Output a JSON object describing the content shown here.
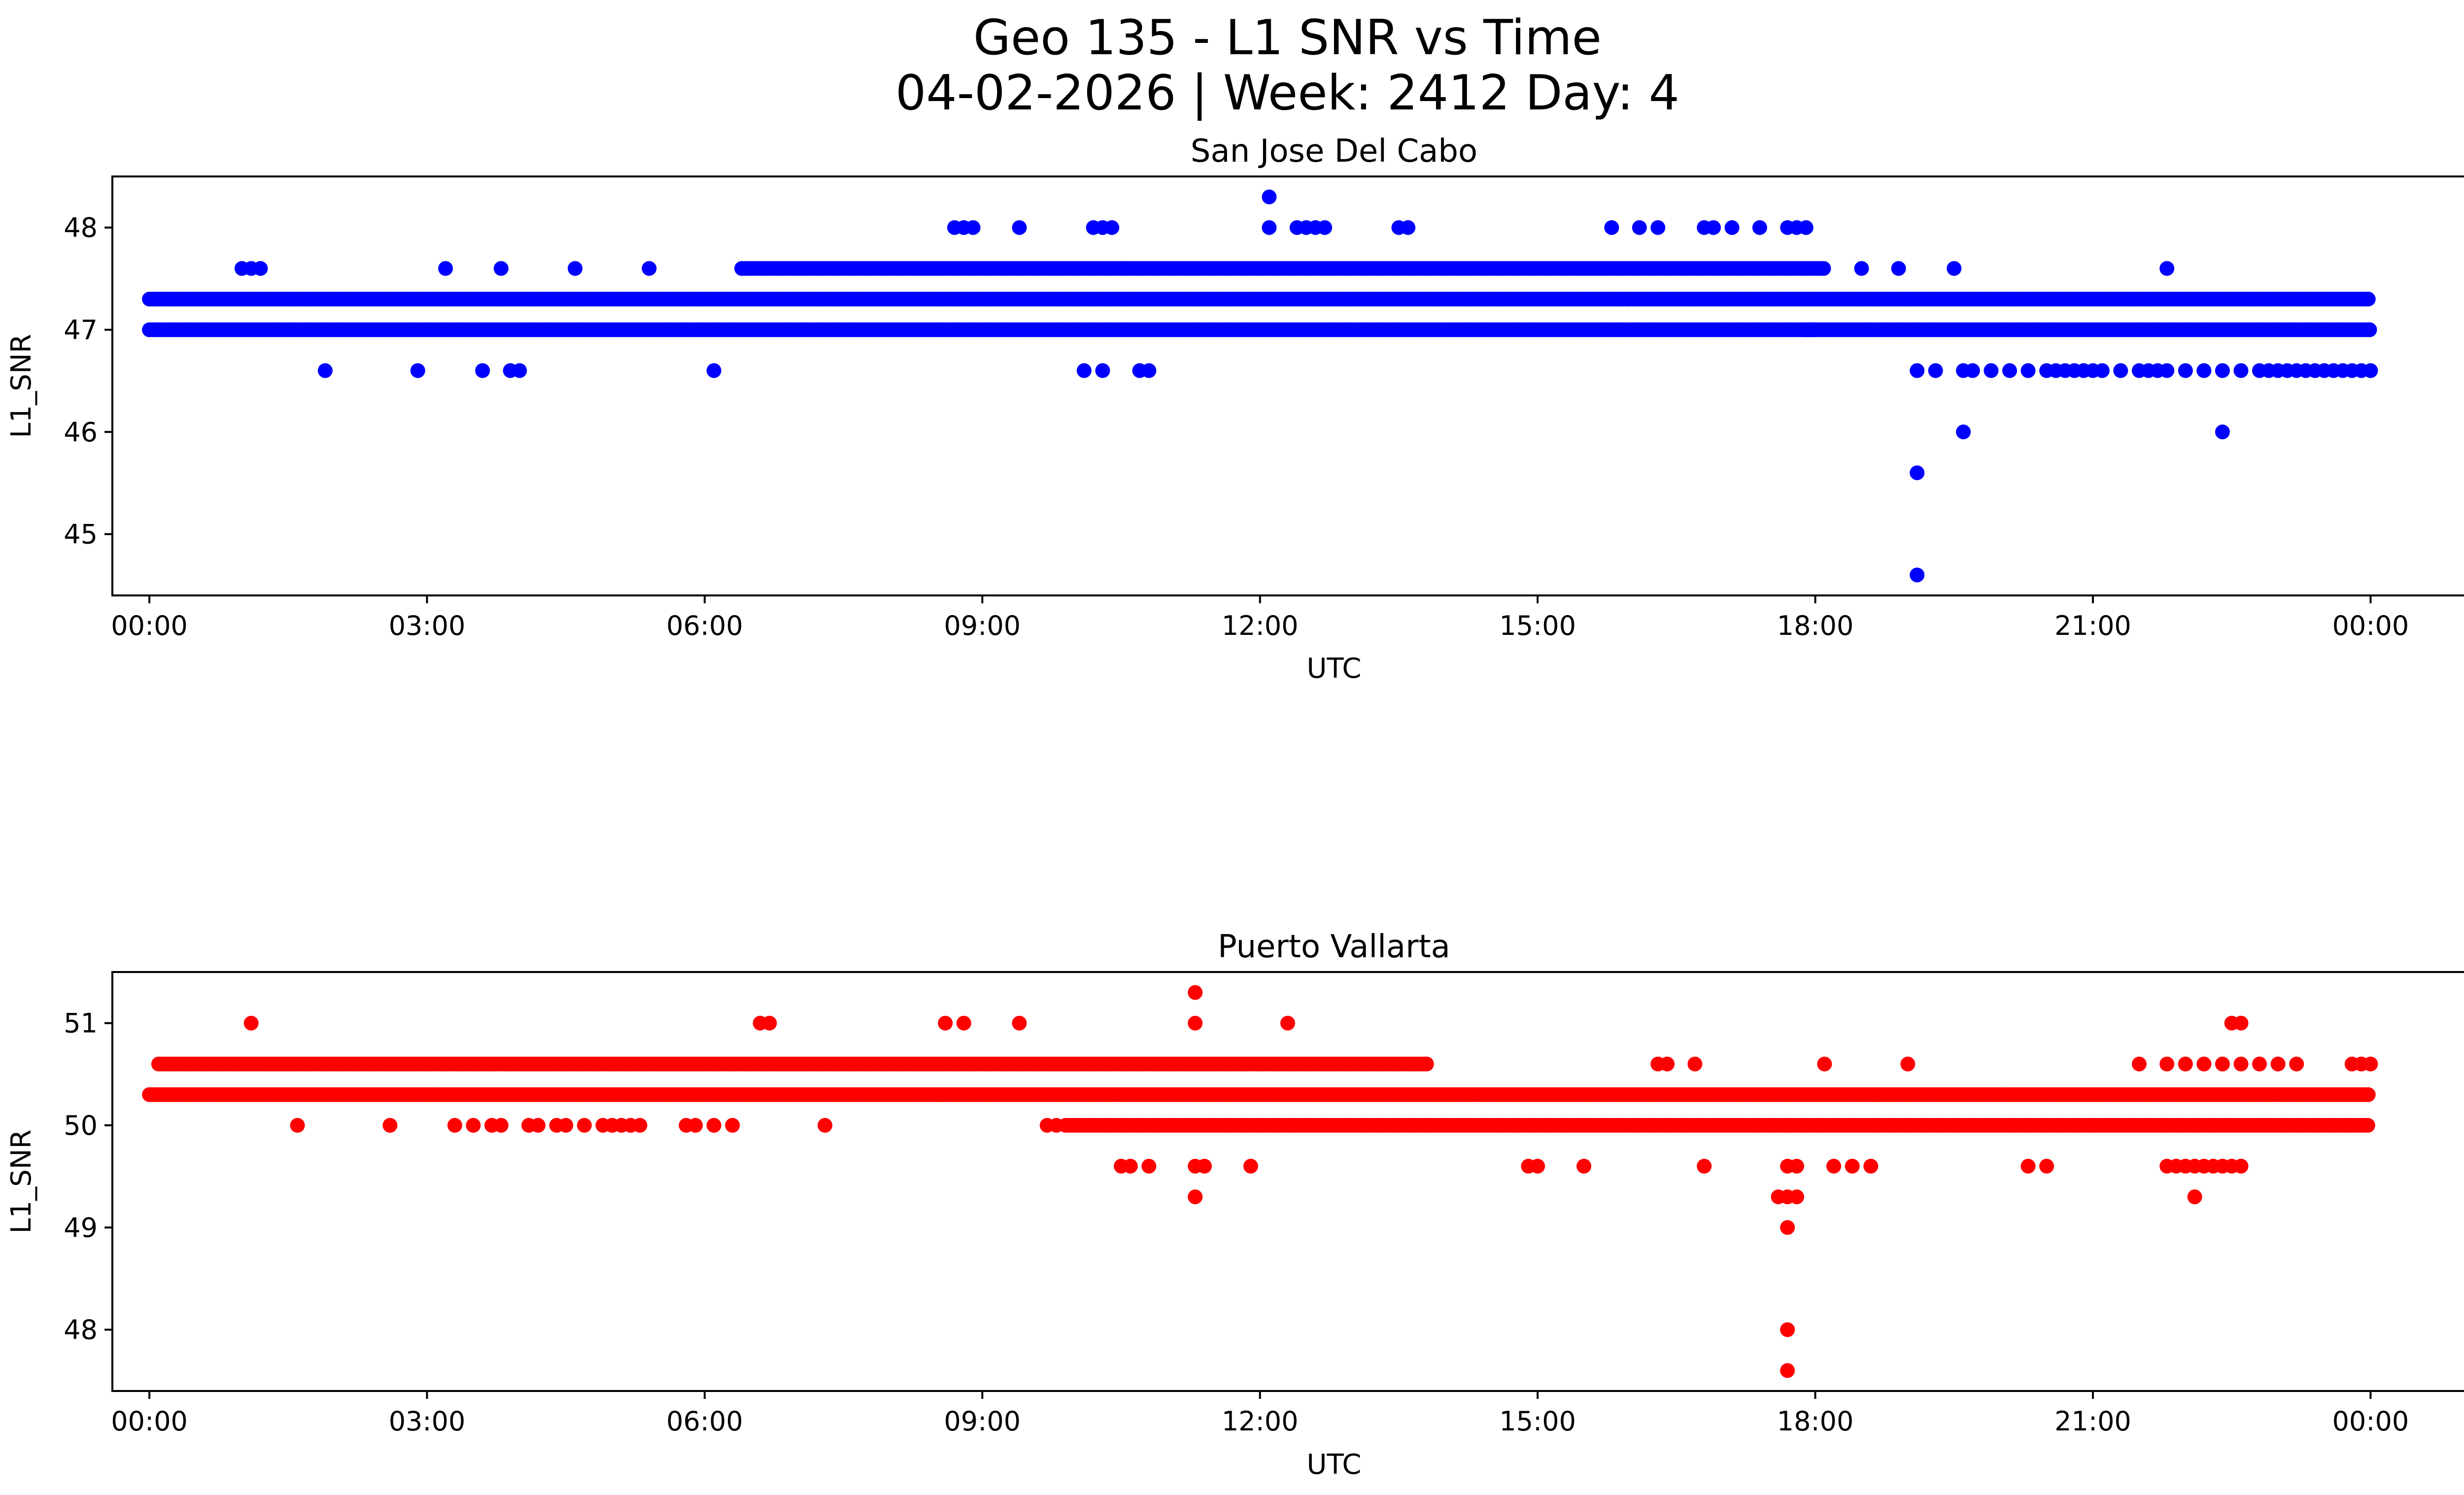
{
  "figure": {
    "title_line1": "Geo 135 - L1 SNR vs Time",
    "title_line2": "04-02-2026 | Week: 2412 Day: 4"
  },
  "chart_data": [
    {
      "type": "scatter",
      "title": "San Jose Del Cabo",
      "xlabel": "UTC",
      "ylabel": "L1_SNR",
      "color": "#0000ff",
      "xlim_hours": [
        -0.4,
        26.0
      ],
      "ylim": [
        44.4,
        48.5
      ],
      "xticks_hours": [
        0,
        3,
        6,
        9,
        12,
        15,
        18,
        21,
        24
      ],
      "xtick_labels": [
        "00:00",
        "03:00",
        "06:00",
        "09:00",
        "12:00",
        "15:00",
        "18:00",
        "21:00",
        "00:00"
      ],
      "yticks": [
        45,
        46,
        47,
        48
      ],
      "ytick_labels": [
        "45",
        "46",
        "47",
        "48"
      ],
      "bands": [
        {
          "y": 47.3,
          "from": 0.0,
          "to": 24.0
        },
        {
          "y": 47.0,
          "from": 0.0,
          "to": 18.0
        },
        {
          "y": 47.6,
          "from": 6.4,
          "to": 18.1
        },
        {
          "y": 47.0,
          "from": 17.9,
          "to": 24.0
        }
      ],
      "points": [
        [
          1.0,
          47.6
        ],
        [
          1.1,
          47.6
        ],
        [
          1.2,
          47.6
        ],
        [
          3.2,
          47.6
        ],
        [
          3.8,
          47.6
        ],
        [
          4.6,
          47.6
        ],
        [
          5.4,
          47.6
        ],
        [
          18.5,
          47.6
        ],
        [
          18.9,
          47.6
        ],
        [
          19.5,
          47.6
        ],
        [
          21.8,
          47.6
        ],
        [
          8.7,
          48.0
        ],
        [
          8.8,
          48.0
        ],
        [
          8.9,
          48.0
        ],
        [
          9.4,
          48.0
        ],
        [
          10.2,
          48.0
        ],
        [
          10.3,
          48.0
        ],
        [
          10.4,
          48.0
        ],
        [
          12.1,
          48.0
        ],
        [
          12.4,
          48.0
        ],
        [
          12.5,
          48.0
        ],
        [
          12.6,
          48.0
        ],
        [
          12.7,
          48.0
        ],
        [
          13.5,
          48.0
        ],
        [
          13.6,
          48.0
        ],
        [
          15.8,
          48.0
        ],
        [
          16.1,
          48.0
        ],
        [
          16.3,
          48.0
        ],
        [
          16.8,
          48.0
        ],
        [
          16.9,
          48.0
        ],
        [
          17.1,
          48.0
        ],
        [
          17.4,
          48.0
        ],
        [
          17.7,
          48.0
        ],
        [
          17.8,
          48.0
        ],
        [
          17.9,
          48.0
        ],
        [
          12.1,
          48.3
        ],
        [
          1.9,
          46.6
        ],
        [
          2.9,
          46.6
        ],
        [
          3.6,
          46.6
        ],
        [
          3.9,
          46.6
        ],
        [
          4.0,
          46.6
        ],
        [
          6.1,
          46.6
        ],
        [
          10.1,
          46.6
        ],
        [
          10.3,
          46.6
        ],
        [
          10.7,
          46.6
        ],
        [
          10.8,
          46.6
        ],
        [
          19.1,
          46.6
        ],
        [
          19.3,
          46.6
        ],
        [
          19.6,
          46.6
        ],
        [
          19.7,
          46.6
        ],
        [
          19.9,
          46.6
        ],
        [
          20.1,
          46.6
        ],
        [
          20.3,
          46.6
        ],
        [
          20.5,
          46.6
        ],
        [
          20.6,
          46.6
        ],
        [
          20.7,
          46.6
        ],
        [
          20.8,
          46.6
        ],
        [
          20.9,
          46.6
        ],
        [
          21.0,
          46.6
        ],
        [
          21.1,
          46.6
        ],
        [
          21.3,
          46.6
        ],
        [
          21.5,
          46.6
        ],
        [
          21.6,
          46.6
        ],
        [
          21.7,
          46.6
        ],
        [
          21.8,
          46.6
        ],
        [
          22.0,
          46.6
        ],
        [
          22.2,
          46.6
        ],
        [
          22.4,
          46.6
        ],
        [
          22.6,
          46.6
        ],
        [
          22.8,
          46.6
        ],
        [
          22.9,
          46.6
        ],
        [
          23.0,
          46.6
        ],
        [
          23.1,
          46.6
        ],
        [
          23.2,
          46.6
        ],
        [
          23.3,
          46.6
        ],
        [
          23.4,
          46.6
        ],
        [
          23.5,
          46.6
        ],
        [
          23.6,
          46.6
        ],
        [
          23.7,
          46.6
        ],
        [
          23.8,
          46.6
        ],
        [
          23.9,
          46.6
        ],
        [
          24.0,
          46.6
        ],
        [
          19.6,
          46.0
        ],
        [
          22.4,
          46.0
        ],
        [
          19.1,
          45.6
        ],
        [
          19.1,
          44.6
        ]
      ]
    },
    {
      "type": "scatter",
      "title": "Puerto Vallarta",
      "xlabel": "UTC",
      "ylabel": "L1_SNR",
      "color": "#ff0000",
      "xlim_hours": [
        -0.4,
        26.0
      ],
      "ylim": [
        47.4,
        51.5
      ],
      "xticks_hours": [
        0,
        3,
        6,
        9,
        12,
        15,
        18,
        21,
        24
      ],
      "xtick_labels": [
        "00:00",
        "03:00",
        "06:00",
        "09:00",
        "12:00",
        "15:00",
        "18:00",
        "21:00",
        "00:00"
      ],
      "yticks": [
        48,
        49,
        50,
        51
      ],
      "ytick_labels": [
        "48",
        "49",
        "50",
        "51"
      ],
      "bands": [
        {
          "y": 50.3,
          "from": 0.0,
          "to": 24.0
        },
        {
          "y": 50.6,
          "from": 0.1,
          "to": 13.8
        },
        {
          "y": 50.0,
          "from": 9.9,
          "to": 24.0
        }
      ],
      "points": [
        [
          1.1,
          51.0
        ],
        [
          6.6,
          51.0
        ],
        [
          6.7,
          51.0
        ],
        [
          8.6,
          51.0
        ],
        [
          8.8,
          51.0
        ],
        [
          9.4,
          51.0
        ],
        [
          11.3,
          51.0
        ],
        [
          12.3,
          51.0
        ],
        [
          22.5,
          51.0
        ],
        [
          22.6,
          51.0
        ],
        [
          11.3,
          51.3
        ],
        [
          1.6,
          50.0
        ],
        [
          2.6,
          50.0
        ],
        [
          3.3,
          50.0
        ],
        [
          3.5,
          50.0
        ],
        [
          3.7,
          50.0
        ],
        [
          3.8,
          50.0
        ],
        [
          4.1,
          50.0
        ],
        [
          4.2,
          50.0
        ],
        [
          4.4,
          50.0
        ],
        [
          4.5,
          50.0
        ],
        [
          4.7,
          50.0
        ],
        [
          4.9,
          50.0
        ],
        [
          5.0,
          50.0
        ],
        [
          5.1,
          50.0
        ],
        [
          5.2,
          50.0
        ],
        [
          5.3,
          50.0
        ],
        [
          5.8,
          50.0
        ],
        [
          5.9,
          50.0
        ],
        [
          6.1,
          50.0
        ],
        [
          6.3,
          50.0
        ],
        [
          7.3,
          50.0
        ],
        [
          9.7,
          50.0
        ],
        [
          9.8,
          50.0
        ],
        [
          16.3,
          50.6
        ],
        [
          16.4,
          50.6
        ],
        [
          16.7,
          50.6
        ],
        [
          18.1,
          50.6
        ],
        [
          19.0,
          50.6
        ],
        [
          13.8,
          50.6
        ],
        [
          21.5,
          50.6
        ],
        [
          21.8,
          50.6
        ],
        [
          22.0,
          50.6
        ],
        [
          22.2,
          50.6
        ],
        [
          22.4,
          50.6
        ],
        [
          22.6,
          50.6
        ],
        [
          22.8,
          50.6
        ],
        [
          23.0,
          50.6
        ],
        [
          23.2,
          50.6
        ],
        [
          23.8,
          50.6
        ],
        [
          23.9,
          50.6
        ],
        [
          24.0,
          50.6
        ],
        [
          10.5,
          49.6
        ],
        [
          10.6,
          49.6
        ],
        [
          10.8,
          49.6
        ],
        [
          11.3,
          49.6
        ],
        [
          11.4,
          49.6
        ],
        [
          11.9,
          49.6
        ],
        [
          14.9,
          49.6
        ],
        [
          15.0,
          49.6
        ],
        [
          15.5,
          49.6
        ],
        [
          16.8,
          49.6
        ],
        [
          17.7,
          49.6
        ],
        [
          17.8,
          49.6
        ],
        [
          18.2,
          49.6
        ],
        [
          18.4,
          49.6
        ],
        [
          18.6,
          49.6
        ],
        [
          20.3,
          49.6
        ],
        [
          20.5,
          49.6
        ],
        [
          21.8,
          49.6
        ],
        [
          21.9,
          49.6
        ],
        [
          22.0,
          49.6
        ],
        [
          22.1,
          49.6
        ],
        [
          22.2,
          49.6
        ],
        [
          22.3,
          49.6
        ],
        [
          22.4,
          49.6
        ],
        [
          22.5,
          49.6
        ],
        [
          22.6,
          49.6
        ],
        [
          11.3,
          49.3
        ],
        [
          17.6,
          49.3
        ],
        [
          17.7,
          49.3
        ],
        [
          17.8,
          49.3
        ],
        [
          22.1,
          49.3
        ],
        [
          17.7,
          49.0
        ],
        [
          17.7,
          48.0
        ],
        [
          17.7,
          47.6
        ]
      ]
    }
  ]
}
